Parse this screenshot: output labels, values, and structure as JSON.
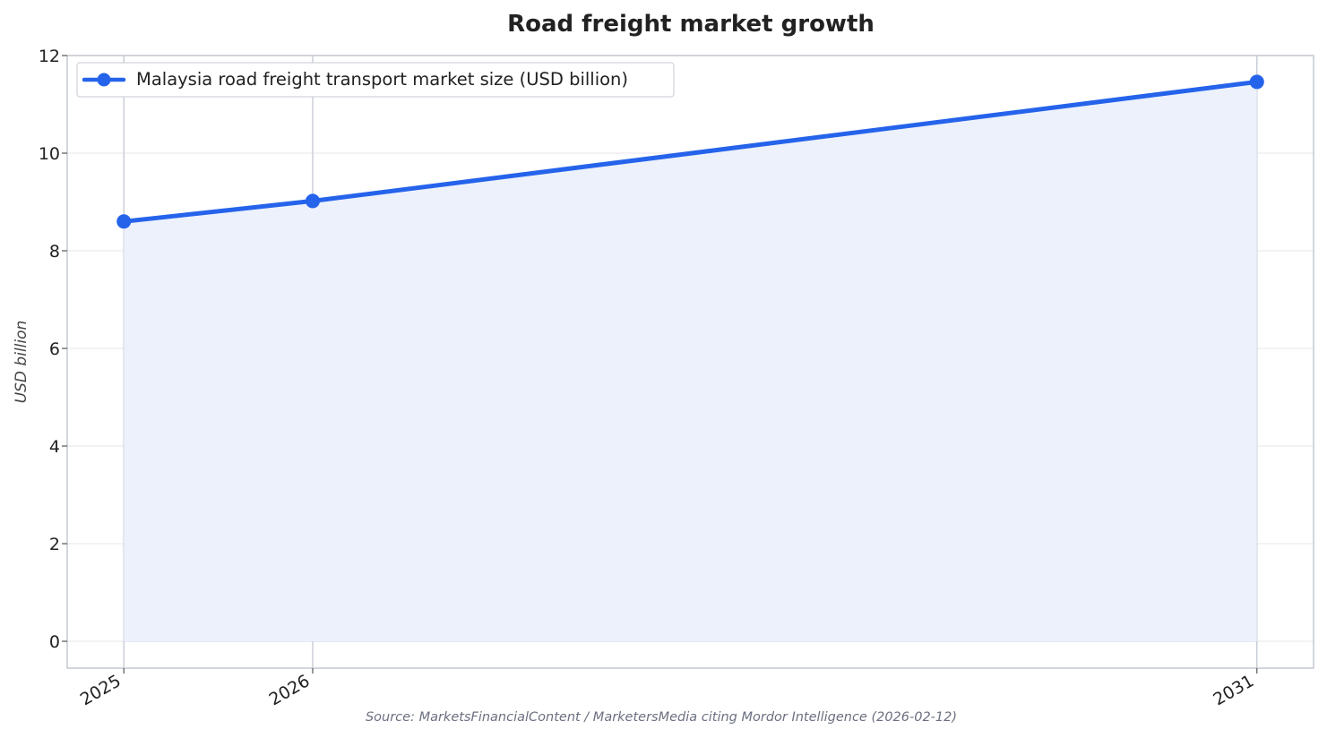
{
  "chart_data": {
    "type": "area",
    "title": "Road freight market growth",
    "xlabel": "",
    "ylabel": "USD billion",
    "categories": [
      "2025",
      "2026",
      "2031"
    ],
    "x": [
      2025,
      2026,
      2031
    ],
    "series": [
      {
        "name": "Malaysia road freight transport market size (USD billion)",
        "values": [
          8.6,
          9.02,
          11.46
        ],
        "color": "#2563eb",
        "fill_color": "#ecf1fc"
      }
    ],
    "ylim": [
      -0.55,
      12
    ],
    "yticks": [
      0,
      2,
      4,
      6,
      8,
      10,
      12
    ],
    "ytick_labels": [
      "0",
      "2",
      "4",
      "6",
      "8",
      "10",
      "12"
    ],
    "grid": true,
    "legend_position": "top-left",
    "source": "Source: MarketsFinancialContent / MarketersMedia citing Mordor Intelligence (2026-02-12)"
  }
}
